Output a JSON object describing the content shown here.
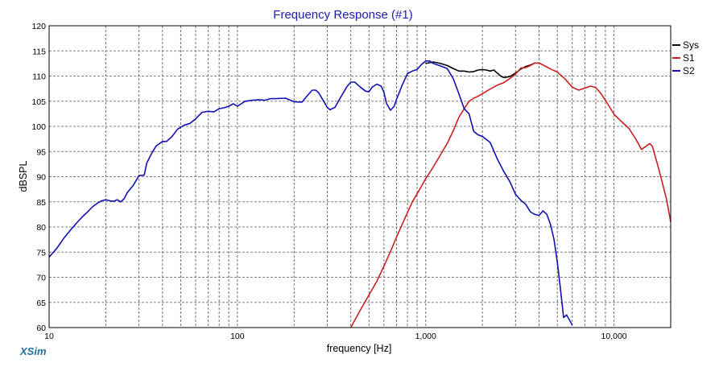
{
  "chart_data": {
    "type": "line",
    "title": "Frequency Response (#1)",
    "xlabel": "frequency [Hz]",
    "ylabel": "dBSPL",
    "x_scale": "log",
    "xlim": [
      10,
      20000
    ],
    "ylim": [
      60,
      120
    ],
    "x_ticks": [
      10,
      100,
      1000,
      10000
    ],
    "x_tick_labels": [
      "10",
      "100",
      "1,000",
      "10,000"
    ],
    "y_ticks": [
      60,
      65,
      70,
      75,
      80,
      85,
      90,
      95,
      100,
      105,
      110,
      115,
      120
    ],
    "grid": true,
    "legend_position": "top-right",
    "brand": "XSim",
    "series": [
      {
        "name": "Sys",
        "color": "#000000",
        "points": [
          [
            1000,
            112.5
          ],
          [
            1100,
            112.8
          ],
          [
            1200,
            112.5
          ],
          [
            1300,
            112.1
          ],
          [
            1400,
            111.5
          ],
          [
            1500,
            111.0
          ],
          [
            1600,
            111.0
          ],
          [
            1700,
            110.8
          ],
          [
            1800,
            110.9
          ],
          [
            1900,
            111.2
          ],
          [
            2000,
            111.3
          ],
          [
            2100,
            111.2
          ],
          [
            2200,
            111.0
          ],
          [
            2300,
            111.2
          ],
          [
            2400,
            110.6
          ],
          [
            2500,
            110.0
          ],
          [
            2600,
            109.7
          ],
          [
            2800,
            109.9
          ],
          [
            3000,
            110.6
          ],
          [
            3200,
            111.4
          ],
          [
            3400,
            111.9
          ],
          [
            3600,
            112.2
          ],
          [
            3800,
            112.6
          ]
        ]
      },
      {
        "name": "S1",
        "color": "#cc1f1f",
        "points": [
          [
            400,
            60
          ],
          [
            450,
            63.5
          ],
          [
            500,
            66.5
          ],
          [
            550,
            69.2
          ],
          [
            600,
            72.2
          ],
          [
            650,
            75.1
          ],
          [
            700,
            78.0
          ],
          [
            750,
            80.5
          ],
          [
            800,
            82.9
          ],
          [
            850,
            85.0
          ],
          [
            900,
            86.6
          ],
          [
            950,
            88.1
          ],
          [
            1000,
            89.6
          ],
          [
            1050,
            90.8
          ],
          [
            1100,
            92.0
          ],
          [
            1200,
            94.4
          ],
          [
            1300,
            96.6
          ],
          [
            1400,
            99.1
          ],
          [
            1500,
            101.8
          ],
          [
            1600,
            103.5
          ],
          [
            1700,
            105.0
          ],
          [
            1800,
            105.6
          ],
          [
            1900,
            106.0
          ],
          [
            2000,
            106.5
          ],
          [
            2200,
            107.4
          ],
          [
            2400,
            108.2
          ],
          [
            2600,
            108.7
          ],
          [
            2800,
            109.5
          ],
          [
            3000,
            110.4
          ],
          [
            3200,
            111.6
          ],
          [
            3400,
            111.7
          ],
          [
            3600,
            112.1
          ],
          [
            3800,
            112.6
          ],
          [
            4000,
            112.6
          ],
          [
            4300,
            112.0
          ],
          [
            4600,
            111.4
          ],
          [
            5000,
            110.8
          ],
          [
            5500,
            109.4
          ],
          [
            6000,
            107.8
          ],
          [
            6500,
            107.2
          ],
          [
            7000,
            107.6
          ],
          [
            7500,
            108.0
          ],
          [
            8000,
            107.7
          ],
          [
            8500,
            106.6
          ],
          [
            9000,
            105.2
          ],
          [
            10000,
            102.4
          ],
          [
            11000,
            100.9
          ],
          [
            12000,
            99.6
          ],
          [
            13000,
            97.6
          ],
          [
            14000,
            95.4
          ],
          [
            15000,
            96.2
          ],
          [
            15500,
            96.6
          ],
          [
            16000,
            96.0
          ],
          [
            17000,
            92.5
          ],
          [
            18000,
            89.0
          ],
          [
            19000,
            85.5
          ],
          [
            20000,
            81.0
          ]
        ]
      },
      {
        "name": "S2",
        "color": "#1010b4",
        "points": [
          [
            10,
            74
          ],
          [
            11,
            75.8
          ],
          [
            12,
            77.8
          ],
          [
            13,
            79.4
          ],
          [
            14,
            80.8
          ],
          [
            15,
            82.0
          ],
          [
            16,
            83.0
          ],
          [
            17,
            84.0
          ],
          [
            18,
            84.7
          ],
          [
            19,
            85.2
          ],
          [
            20,
            85.4
          ],
          [
            21,
            85.2
          ],
          [
            22,
            85.1
          ],
          [
            23,
            85.4
          ],
          [
            24,
            85.0
          ],
          [
            25,
            85.6
          ],
          [
            26,
            86.8
          ],
          [
            28,
            88.3
          ],
          [
            30,
            90.2
          ],
          [
            32,
            90.3
          ],
          [
            33,
            92.7
          ],
          [
            35,
            94.6
          ],
          [
            37,
            96.1
          ],
          [
            40,
            97.0
          ],
          [
            42,
            97.0
          ],
          [
            45,
            98.0
          ],
          [
            48,
            99.4
          ],
          [
            52,
            100.2
          ],
          [
            56,
            100.6
          ],
          [
            60,
            101.5
          ],
          [
            65,
            102.8
          ],
          [
            70,
            103.0
          ],
          [
            75,
            102.9
          ],
          [
            80,
            103.5
          ],
          [
            85,
            103.7
          ],
          [
            90,
            104.0
          ],
          [
            95,
            104.5
          ],
          [
            100,
            104.0
          ],
          [
            110,
            105.0
          ],
          [
            120,
            105.2
          ],
          [
            130,
            105.3
          ],
          [
            140,
            105.2
          ],
          [
            150,
            105.5
          ],
          [
            160,
            105.5
          ],
          [
            180,
            105.6
          ],
          [
            200,
            104.9
          ],
          [
            220,
            104.8
          ],
          [
            240,
            106.5
          ],
          [
            250,
            107.2
          ],
          [
            260,
            107.2
          ],
          [
            270,
            106.7
          ],
          [
            300,
            103.8
          ],
          [
            310,
            103.3
          ],
          [
            330,
            103.8
          ],
          [
            350,
            105.5
          ],
          [
            380,
            107.8
          ],
          [
            400,
            108.8
          ],
          [
            420,
            108.8
          ],
          [
            450,
            107.8
          ],
          [
            480,
            107.0
          ],
          [
            500,
            106.9
          ],
          [
            520,
            107.8
          ],
          [
            550,
            108.4
          ],
          [
            580,
            108.0
          ],
          [
            600,
            106.8
          ],
          [
            620,
            104.5
          ],
          [
            650,
            103.2
          ],
          [
            680,
            104.0
          ],
          [
            700,
            105.4
          ],
          [
            750,
            108.2
          ],
          [
            800,
            110.5
          ],
          [
            850,
            111.0
          ],
          [
            900,
            111.3
          ],
          [
            950,
            112.3
          ],
          [
            1000,
            113.0
          ],
          [
            1050,
            113.0
          ],
          [
            1100,
            112.5
          ],
          [
            1200,
            112.0
          ],
          [
            1300,
            111.5
          ],
          [
            1400,
            109.5
          ],
          [
            1500,
            106.5
          ],
          [
            1600,
            103.5
          ],
          [
            1700,
            102.5
          ],
          [
            1800,
            99.0
          ],
          [
            1900,
            98.3
          ],
          [
            2000,
            98.0
          ],
          [
            2200,
            96.8
          ],
          [
            2400,
            93.5
          ],
          [
            2600,
            91.0
          ],
          [
            2800,
            89.0
          ],
          [
            3000,
            86.5
          ],
          [
            3200,
            85.3
          ],
          [
            3400,
            84.5
          ],
          [
            3600,
            83.0
          ],
          [
            3800,
            82.5
          ],
          [
            4000,
            82.3
          ],
          [
            4200,
            83.2
          ],
          [
            4400,
            82.5
          ],
          [
            4600,
            80.5
          ],
          [
            4800,
            77.5
          ],
          [
            5000,
            73.0
          ],
          [
            5200,
            67.5
          ],
          [
            5400,
            62.0
          ],
          [
            5600,
            62.5
          ],
          [
            5800,
            61.5
          ],
          [
            6000,
            60.5
          ]
        ]
      }
    ]
  }
}
